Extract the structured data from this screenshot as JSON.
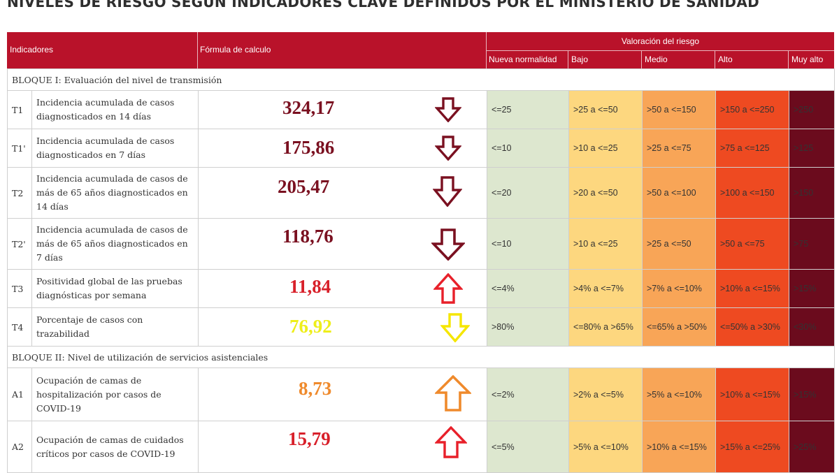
{
  "page_title": "NIVELES DE RIESGO SEGÚN INDICADORES CLAVE DEFINIDOS POR EL MINISTERIO DE SANIDAD",
  "header": {
    "indicadores": "Indicadores",
    "formula": "Fórmula de calculo",
    "valoracion": "Valoración del riesgo",
    "levels": [
      "Nueva normalidad",
      "Bajo",
      "Medio",
      "Alto",
      "Muy alto"
    ]
  },
  "colors": {
    "header_bg": "#b9122a",
    "nueva_normalidad": "#dde7cf",
    "bajo": "#fdd77f",
    "medio": "#f8a557",
    "alto": "#ee4a21",
    "muy_alto": "#6b0b1d",
    "arrow_down_dark": "#7a1020",
    "arrow_up_red": "#e8202a",
    "arrow_yellow": "#f5e600",
    "arrow_orange": "#ef8a2c"
  },
  "blocks": [
    {
      "title": "BLOQUE I: Evaluación del nivel de transmisión",
      "rows": [
        {
          "code": "T1",
          "desc": "Incidencia acumulada de casos diagnosticados en 14 días",
          "value": "324,17",
          "value_color": "#7a1020",
          "arrow": "down",
          "arrow_color": "#7a1020",
          "arrow_icon": "arrow-down-icon",
          "thresholds": [
            "<=25",
            ">25 a <=50",
            ">50 a <=150",
            ">150 a <=250",
            ">250"
          ]
        },
        {
          "code": "T1'",
          "desc": "Incidencia acumulada de casos diagnosticados en 7 días",
          "value": "175,86",
          "value_color": "#7a1020",
          "arrow": "down",
          "arrow_color": "#7a1020",
          "arrow_icon": "arrow-down-icon",
          "thresholds": [
            "<=10",
            ">10 a <=25",
            ">25 a <=75",
            ">75 a <=125",
            ">125"
          ]
        },
        {
          "code": "T2",
          "desc": "Incidencia acumulada de casos de más de 65 años diagnosticados en 14 días",
          "value": "205,47",
          "value_color": "#7a1020",
          "arrow": "down",
          "arrow_color": "#7a1020",
          "arrow_icon": "arrow-down-icon",
          "thresholds": [
            "<=20",
            ">20 a <=50",
            ">50 a <=100",
            ">100 a <=150",
            ">150"
          ]
        },
        {
          "code": "T2'",
          "desc": "Incidencia acumulada de casos de más de 65 años diagnosticados en 7 días",
          "value": "118,76",
          "value_color": "#7a1020",
          "arrow": "down",
          "arrow_color": "#7a1020",
          "arrow_icon": "arrow-down-icon",
          "thresholds": [
            "<=10",
            ">10 a <=25",
            ">25 a <=50",
            ">50 a <=75",
            ">75"
          ]
        },
        {
          "code": "T3",
          "desc": "Positividad global de las pruebas diagnósticas por semana",
          "value": "11,84",
          "value_color": "#d8202a",
          "arrow": "up",
          "arrow_color": "#e8202a",
          "arrow_icon": "arrow-up-icon",
          "thresholds": [
            "<=4%",
            ">4% a <=7%",
            ">7% a <=10%",
            ">10% a <=15%",
            ">15%"
          ]
        },
        {
          "code": "T4",
          "desc": "Porcentaje de casos con trazabilidad",
          "value": "76,92",
          "value_color": "#eeee1a",
          "arrow": "down",
          "arrow_color": "#f5e600",
          "arrow_icon": "arrow-down-icon",
          "thresholds": [
            ">80%",
            "<=80% a >65%",
            "<=65% a >50%",
            "<=50% a >30%",
            "<30%"
          ]
        }
      ]
    },
    {
      "title": "BLOQUE II: Nivel de utilización de servicios asistenciales",
      "rows": [
        {
          "code": "A1",
          "desc": "Ocupación de camas de hospitalización por casos de COVID-19",
          "value": "8,73",
          "value_color": "#ef8a2c",
          "arrow": "up",
          "arrow_color": "#ef8a2c",
          "arrow_icon": "arrow-up-icon",
          "thresholds": [
            "<=2%",
            ">2% a <=5%",
            ">5% a <=10%",
            ">10% a <=15%",
            ">15%"
          ]
        },
        {
          "code": "A2",
          "desc": "Ocupación de camas de cuidados críticos por casos de COVID-19",
          "value": "15,79",
          "value_color": "#d8202a",
          "arrow": "up",
          "arrow_color": "#e8202a",
          "arrow_icon": "arrow-up-icon",
          "thresholds": [
            "<=5%",
            ">5% a <=10%",
            ">10% a <=15%",
            ">15% a <=25%",
            ">25%"
          ]
        }
      ]
    }
  ]
}
